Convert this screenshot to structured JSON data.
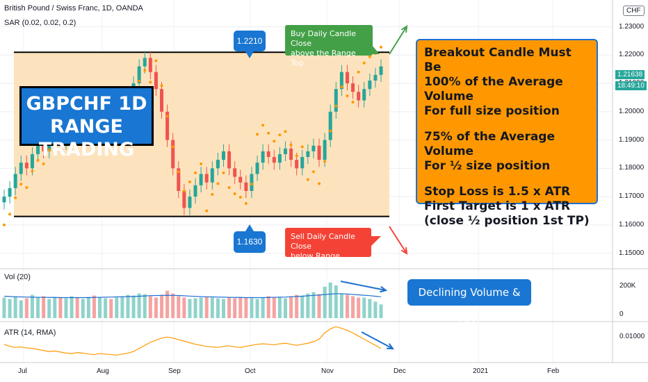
{
  "header": {
    "symbol": "British Pound / Swiss Franc, 1D, OANDA",
    "indicator": "SAR (0.02, 0.02, 0.2)",
    "currency": "CHF"
  },
  "annotations": {
    "title_line1": "GBPCHF 1D",
    "title_line2": "RANGE TRADING",
    "buy_line1": "Buy Daily Candle Close",
    "buy_line2": "above the Range Top",
    "sell_line1": "Sell Daily Candle Close",
    "sell_line2": "below Range Bottom",
    "top_level": "1.2210",
    "bottom_level": "1.1630",
    "volume_note": "Declining Volume & ATR",
    "rules": [
      "Breakout Candle Must Be",
      "100% of the Average Volume",
      "For full size position",
      "75% of the Average Volume",
      "For ½ size position",
      "Stop Loss is 1.5 x ATR",
      "First Target is 1 x ATR",
      "(close ½ position 1st TP)"
    ]
  },
  "panes": {
    "volume_label": "Vol (20)",
    "atr_label": "ATR (14, RMA)"
  },
  "price_tags": {
    "last": "1.21638",
    "countdown": "18:49:10"
  },
  "colors": {
    "up": "#26a69a",
    "down": "#ef5350",
    "sar": "#ff9800",
    "range_fill": "#fde3bd",
    "volume_ma": "#1e6fd0",
    "atr": "#ff9800",
    "arrow": "#1e6fd0",
    "buy_box": "#43a047",
    "sell_box": "#f44336"
  },
  "chart_data": {
    "type": "candlestick",
    "x_ticks": [
      "Jul",
      "Aug",
      "Sep",
      "Oct",
      "Nov",
      "Dec",
      "2021",
      "Feb"
    ],
    "y_ticks": [
      "1.15000",
      "1.16000",
      "1.17000",
      "1.18000",
      "1.19000",
      "1.20000",
      "1.21000",
      "1.22000",
      "1.23000"
    ],
    "y_range": [
      1.145,
      1.237
    ],
    "range_top": 1.221,
    "range_bottom": 1.163,
    "last_price": 1.21638,
    "close_series": [
      1.17,
      1.173,
      1.178,
      1.182,
      1.18,
      1.185,
      1.188,
      1.186,
      1.19,
      1.192,
      1.189,
      1.193,
      1.195,
      1.192,
      1.196,
      1.198,
      1.195,
      1.197,
      1.2,
      1.198,
      1.201,
      1.203,
      1.206,
      1.21,
      1.216,
      1.219,
      1.214,
      1.208,
      1.2,
      1.19,
      1.18,
      1.172,
      1.166,
      1.17,
      1.174,
      1.178,
      1.175,
      1.18,
      1.183,
      1.186,
      1.18,
      1.177,
      1.175,
      1.172,
      1.178,
      1.182,
      1.186,
      1.184,
      1.182,
      1.185,
      1.187,
      1.183,
      1.18,
      1.184,
      1.186,
      1.188,
      1.183,
      1.19,
      1.2,
      1.208,
      1.214,
      1.21,
      1.207,
      1.204,
      1.208,
      1.211,
      1.213,
      1.216
    ],
    "volume": {
      "y_ticks": [
        "200K",
        "0"
      ],
      "values": [
        150,
        140,
        160,
        130,
        145,
        170,
        150,
        160,
        140,
        155,
        150,
        145,
        160,
        150,
        140,
        155,
        165,
        150,
        145,
        140,
        150,
        160,
        170,
        165,
        180,
        175,
        160,
        150,
        170,
        200,
        180,
        160,
        150,
        140,
        145,
        150,
        155,
        150,
        145,
        140,
        150,
        145,
        155,
        150,
        145,
        140,
        150,
        160,
        155,
        150,
        145,
        160,
        170,
        165,
        180,
        190,
        175,
        230,
        260,
        240,
        180,
        170,
        160,
        150,
        150,
        140,
        120,
        100
      ],
      "ma20": [
        160,
        158,
        156,
        155,
        154,
        153,
        152,
        152,
        151,
        151,
        150,
        150,
        150,
        150,
        150,
        150,
        151,
        152,
        153,
        154,
        155,
        156,
        157,
        158,
        160,
        162,
        164,
        165,
        166,
        167,
        166,
        165,
        163,
        161,
        159,
        157,
        156,
        155,
        154,
        153,
        152,
        151,
        151,
        150,
        150,
        150,
        150,
        151,
        152,
        153,
        154,
        156,
        158,
        160,
        163,
        166,
        169,
        172,
        176,
        178,
        178,
        176,
        173,
        170,
        167,
        164,
        160,
        156
      ],
      "ymax": 320
    },
    "atr": {
      "y_ticks": [
        "0.01000"
      ],
      "values": [
        0.009,
        0.0086,
        0.0084,
        0.0085,
        0.0083,
        0.0082,
        0.008,
        0.0078,
        0.0076,
        0.0077,
        0.0075,
        0.0073,
        0.0072,
        0.0074,
        0.0073,
        0.0071,
        0.007,
        0.0072,
        0.0071,
        0.007,
        0.0069,
        0.0071,
        0.0073,
        0.0076,
        0.0082,
        0.0088,
        0.0094,
        0.0098,
        0.0102,
        0.0104,
        0.0102,
        0.0099,
        0.0096,
        0.0093,
        0.009,
        0.0088,
        0.0086,
        0.0085,
        0.0084,
        0.0086,
        0.0087,
        0.0085,
        0.0084,
        0.0086,
        0.0088,
        0.009,
        0.0091,
        0.009,
        0.0089,
        0.0091,
        0.0092,
        0.009,
        0.0088,
        0.009,
        0.0092,
        0.0095,
        0.01,
        0.0112,
        0.012,
        0.0124,
        0.0121,
        0.0117,
        0.0112,
        0.0106,
        0.01,
        0.0094,
        0.0088,
        0.0082
      ],
      "ymin": 0.006,
      "ymax": 0.013
    }
  }
}
